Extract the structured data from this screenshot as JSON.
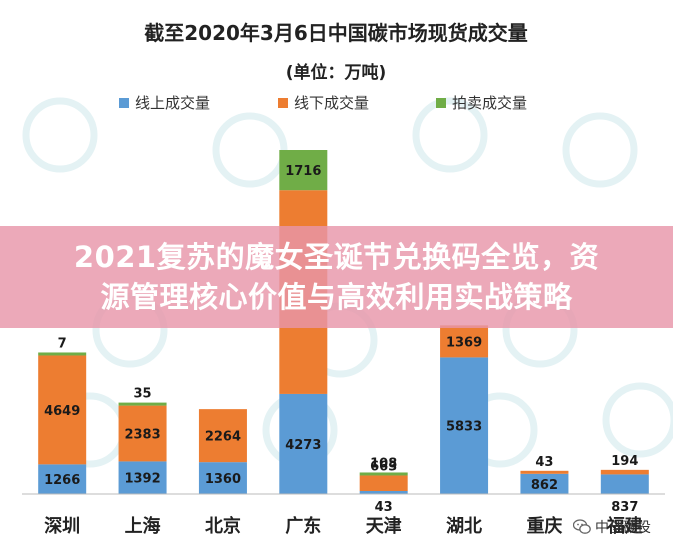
{
  "chart_data": {
    "type": "bar",
    "stacked": true,
    "title": "截至2020年3月6日中国碳市场现货成交量",
    "subtitle": "(单位：万吨)",
    "legend_position": "top",
    "categories": [
      "深圳",
      "上海",
      "北京",
      "广东",
      "天津",
      "湖北",
      "重庆",
      "福建"
    ],
    "series": [
      {
        "name": "线上成交量",
        "color": "#5B9BD5",
        "values": [
          1266,
          1392,
          1360,
          4273,
          43,
          5833,
          862,
          837
        ]
      },
      {
        "name": "线下成交量",
        "color": "#ED7D31",
        "values": [
          4649,
          2383,
          2264,
          8700,
          663,
          1369,
          43,
          194
        ]
      },
      {
        "name": "拍卖成交量",
        "color": "#70AD47",
        "values": [
          7,
          35,
          0,
          1716,
          108,
          0,
          0,
          0
        ]
      }
    ],
    "data_labels": [
      {
        "category": "深圳",
        "labels": [
          "1266",
          "4649",
          "7"
        ]
      },
      {
        "category": "上海",
        "labels": [
          "1392",
          "2383",
          "35"
        ]
      },
      {
        "category": "北京",
        "labels": [
          "1360",
          "2264",
          ""
        ]
      },
      {
        "category": "广东",
        "labels": [
          "4273",
          "",
          "1716"
        ]
      },
      {
        "category": "天津",
        "labels": [
          "43",
          "663",
          "108"
        ]
      },
      {
        "category": "湖北",
        "labels": [
          "5833",
          "1369",
          ""
        ]
      },
      {
        "category": "重庆",
        "labels": [
          "862",
          "43",
          ""
        ]
      },
      {
        "category": "福建",
        "labels": [
          "837",
          "194",
          ""
        ]
      }
    ],
    "grid": false
  },
  "overlay": {
    "line1": "2021复苏的魔女圣诞节兑换码全览，资",
    "line2": "源管理核心价值与高效利用实战策略"
  },
  "watermark": {
    "text": "中创碳投",
    "icon": "wechat-icon"
  }
}
